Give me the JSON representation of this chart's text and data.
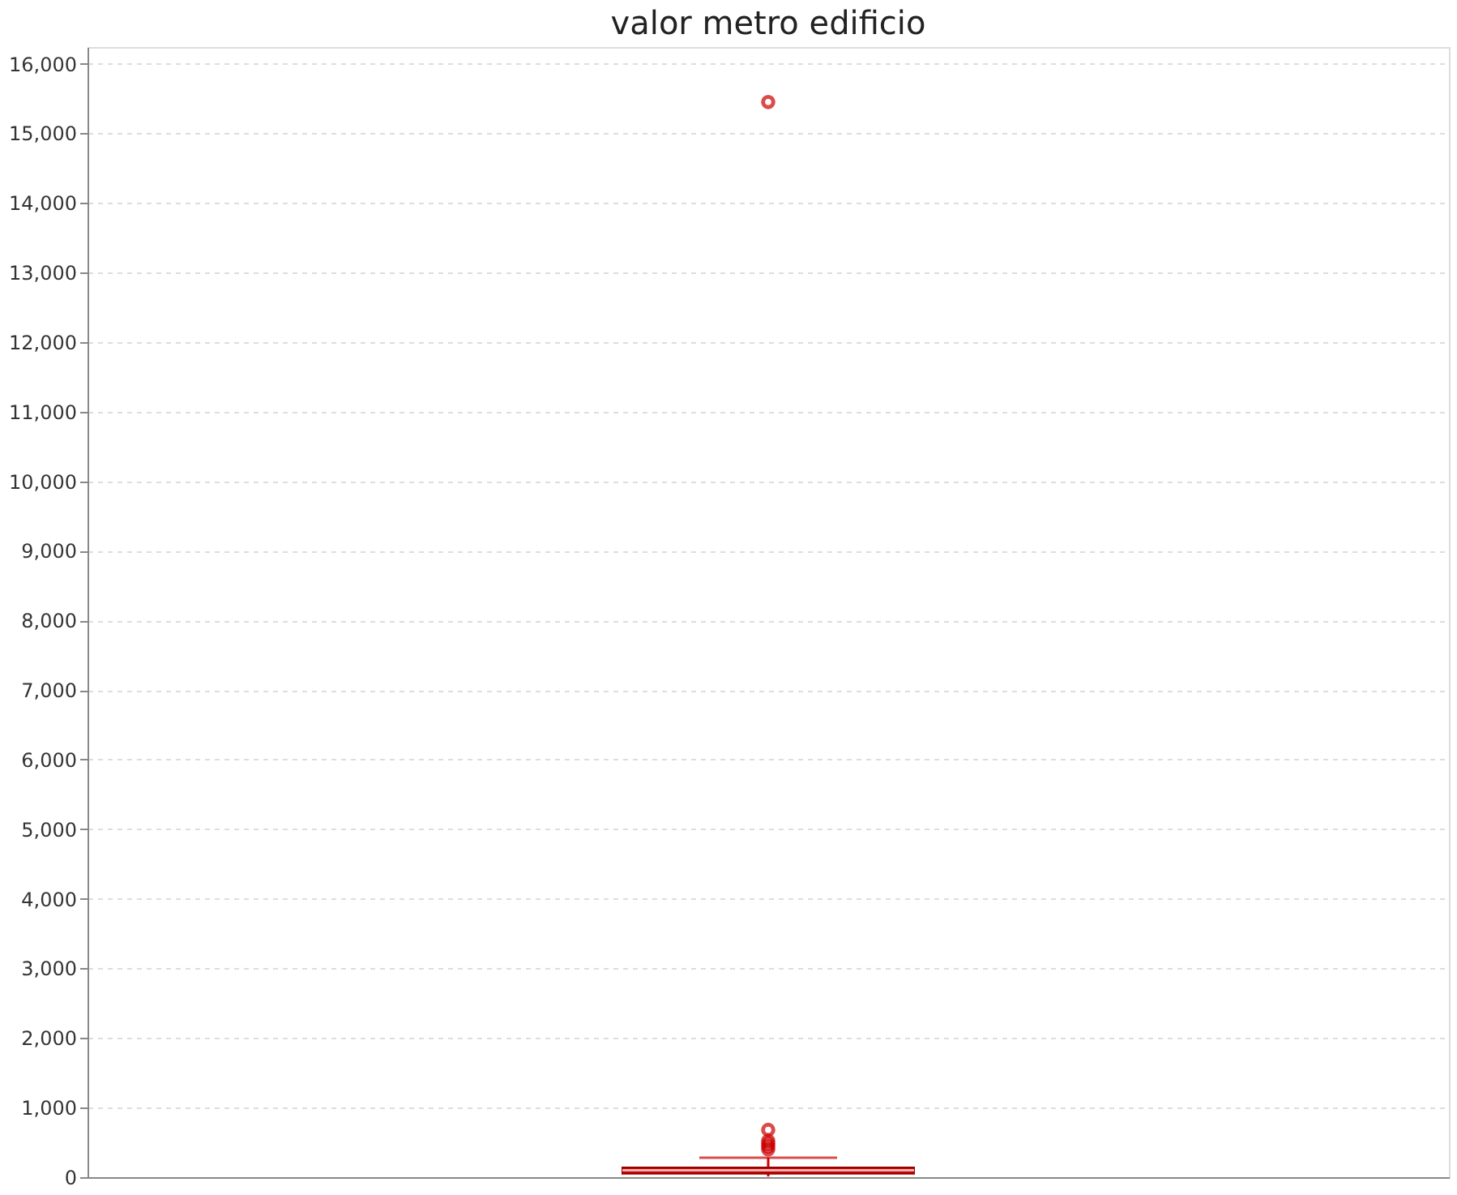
{
  "chart_data": {
    "type": "box",
    "title": "valor metro edificio",
    "categories": [
      null
    ],
    "series": [
      {
        "color": "#cc0000",
        "boxes": [
          {
            "low": 10,
            "q1": 50,
            "median": 100,
            "q3": 140,
            "high": 280,
            "outliers": [
              400,
              440,
              480,
              520,
              680,
              15450
            ]
          }
        ]
      }
    ],
    "ylim": [
      0,
      16240
    ],
    "yticks": [
      0,
      {
        "value": 1000,
        "label": "1,000"
      },
      {
        "value": 2000,
        "label": "2,000"
      },
      {
        "value": 3000,
        "label": "3,000"
      },
      {
        "value": 4000,
        "label": "4,000"
      },
      {
        "value": 5000,
        "label": "5,000"
      },
      {
        "value": 6000,
        "label": "6,000"
      },
      {
        "value": 7000,
        "label": "7,000"
      },
      {
        "value": 8000,
        "label": "8,000"
      },
      {
        "value": 9000,
        "label": "9,000"
      },
      {
        "value": 10000,
        "label": "10,000"
      },
      {
        "value": 11000,
        "label": "11,000"
      },
      {
        "value": 12000,
        "label": "12,000"
      },
      {
        "value": 13000,
        "label": "13,000"
      },
      {
        "value": 14000,
        "label": "14,000"
      },
      {
        "value": 15000,
        "label": "15,000"
      },
      {
        "value": 16000,
        "label": "16,000"
      }
    ],
    "grid": "y",
    "tick_labels": "y"
  }
}
